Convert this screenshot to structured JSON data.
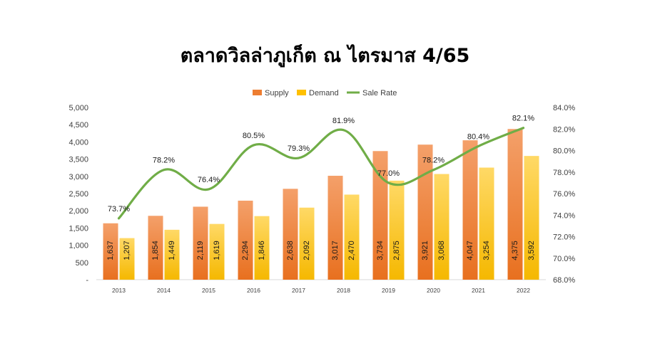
{
  "chart_data": {
    "type": "bar",
    "title": "ตลาดวิลล่าภูเก็ต ณ ไตรมาส 4/65",
    "categories": [
      "2013",
      "2014",
      "2015",
      "2016",
      "2017",
      "2018",
      "2019",
      "2020",
      "2021",
      "2022"
    ],
    "series": [
      {
        "name": "Supply",
        "type": "bar",
        "axis": "left",
        "color": "#ED7D31",
        "values": [
          1637,
          1854,
          2119,
          2294,
          2638,
          3017,
          3734,
          3921,
          4047,
          4375
        ],
        "labels": [
          "1,637",
          "1,854",
          "2,119",
          "2,294",
          "2,638",
          "3,017",
          "3,734",
          "3,921",
          "4,047",
          "4,375"
        ]
      },
      {
        "name": "Demand",
        "type": "bar",
        "axis": "left",
        "color": "#FFC000",
        "values": [
          1207,
          1449,
          1619,
          1846,
          2092,
          2470,
          2875,
          3068,
          3254,
          3592
        ],
        "labels": [
          "1,207",
          "1,449",
          "1,619",
          "1,846",
          "2,092",
          "2,470",
          "2,875",
          "3,068",
          "3,254",
          "3,592"
        ]
      },
      {
        "name": "Sale Rate",
        "type": "line",
        "axis": "right",
        "color": "#70AD47",
        "smooth": true,
        "values": [
          73.7,
          78.2,
          76.4,
          80.5,
          79.3,
          81.9,
          77.0,
          78.2,
          80.4,
          82.1
        ],
        "labels": [
          "73.7%",
          "78.2%",
          "76.4%",
          "80.5%",
          "79.3%",
          "81.9%",
          "77.0%",
          "78.2%",
          "80.4%",
          "82.1%"
        ]
      }
    ],
    "y_left": {
      "range": [
        0,
        5000
      ],
      "ticks": [
        "-",
        "500",
        "1,000",
        "1,500",
        "2,000",
        "2,500",
        "3,000",
        "3,500",
        "4,000",
        "4,500",
        "5,000"
      ]
    },
    "y_right": {
      "range": [
        68,
        84
      ],
      "ticks": [
        "68.0%",
        "70.0%",
        "72.0%",
        "74.0%",
        "76.0%",
        "78.0%",
        "80.0%",
        "82.0%",
        "84.0%"
      ]
    },
    "legend": {
      "position": "top"
    },
    "grid": false
  }
}
